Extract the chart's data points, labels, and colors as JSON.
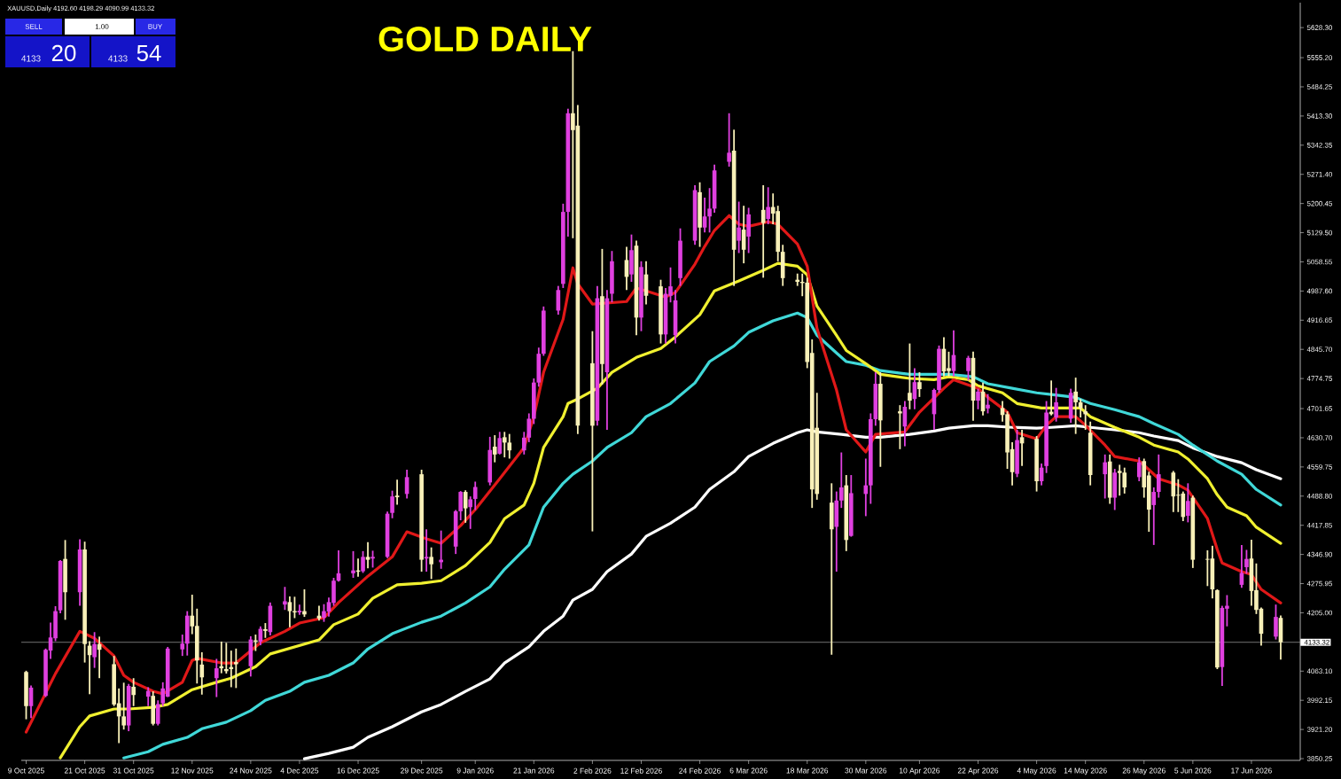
{
  "chart_data": {
    "type": "candlestick",
    "title": "GOLD DAILY",
    "subtitle": "XAUUSD,Daily 4192.60 4198.29 4090.99 4133.32",
    "annotations": [
      "SELL",
      "1.00",
      "BUY",
      "4133",
      "20",
      "4133",
      "54"
    ],
    "x": [
      "2025-10-09",
      "2025-10-10",
      "2025-10-13",
      "2025-10-14",
      "2025-10-15",
      "2025-10-16",
      "2025-10-17",
      "2025-10-20",
      "2025-10-21",
      "2025-10-22",
      "2025-10-23",
      "2025-10-24",
      "2025-10-27",
      "2025-10-28",
      "2025-10-29",
      "2025-10-30",
      "2025-10-31",
      "2025-11-03",
      "2025-11-04",
      "2025-11-05",
      "2025-11-06",
      "2025-11-07",
      "2025-11-10",
      "2025-11-11",
      "2025-11-12",
      "2025-11-13",
      "2025-11-14",
      "2025-11-17",
      "2025-11-18",
      "2025-11-19",
      "2025-11-20",
      "2025-11-21",
      "2025-11-24",
      "2025-11-25",
      "2025-11-26",
      "2025-11-27",
      "2025-11-28",
      "2025-12-01",
      "2025-12-02",
      "2025-12-03",
      "2025-12-04",
      "2025-12-05",
      "2025-12-08",
      "2025-12-09",
      "2025-12-10",
      "2025-12-11",
      "2025-12-12",
      "2025-12-15",
      "2025-12-16",
      "2025-12-17",
      "2025-12-18",
      "2025-12-19",
      "2025-12-22",
      "2025-12-23",
      "2025-12-24",
      "2025-12-26",
      "2025-12-29",
      "2025-12-30",
      "2025-12-31",
      "2026-01-02",
      "2026-01-05",
      "2026-01-06",
      "2026-01-07",
      "2026-01-08",
      "2026-01-09",
      "2026-01-12",
      "2026-01-13",
      "2026-01-14",
      "2026-01-15",
      "2026-01-16",
      "2026-01-19",
      "2026-01-20",
      "2026-01-21",
      "2026-01-22",
      "2026-01-23",
      "2026-01-26",
      "2026-01-27",
      "2026-01-28",
      "2026-01-29",
      "2026-01-30",
      "2026-02-02",
      "2026-02-03",
      "2026-02-04",
      "2026-02-05",
      "2026-02-06",
      "2026-02-09",
      "2026-02-10",
      "2026-02-11",
      "2026-02-12",
      "2026-02-13",
      "2026-02-16",
      "2026-02-17",
      "2026-02-18",
      "2026-02-19",
      "2026-02-20",
      "2026-02-23",
      "2026-02-24",
      "2026-02-25",
      "2026-02-26",
      "2026-02-27",
      "2026-03-02",
      "2026-03-03",
      "2026-03-04",
      "2026-03-05",
      "2026-03-06",
      "2026-03-09",
      "2026-03-10",
      "2026-03-11",
      "2026-03-12",
      "2026-03-13",
      "2026-03-16",
      "2026-03-17",
      "2026-03-18",
      "2026-03-19",
      "2026-03-20",
      "2026-03-23",
      "2026-03-24",
      "2026-03-25",
      "2026-03-26",
      "2026-03-27",
      "2026-03-30",
      "2026-03-31",
      "2026-04-01",
      "2026-04-02",
      "2026-04-06",
      "2026-04-07",
      "2026-04-08",
      "2026-04-09",
      "2026-04-10",
      "2026-04-13",
      "2026-04-14",
      "2026-04-15",
      "2026-04-16",
      "2026-04-17",
      "2026-04-20",
      "2026-04-21",
      "2026-04-22",
      "2026-04-23",
      "2026-04-24",
      "2026-04-27",
      "2026-04-28",
      "2026-04-29",
      "2026-04-30",
      "2026-05-01",
      "2026-05-04",
      "2026-05-05",
      "2026-05-06",
      "2026-05-07",
      "2026-05-08",
      "2026-05-11",
      "2026-05-12",
      "2026-05-13",
      "2026-05-14",
      "2026-05-15",
      "2026-05-18",
      "2026-05-19",
      "2026-05-20",
      "2026-05-21",
      "2026-05-22",
      "2026-05-25",
      "2026-05-26",
      "2026-05-27",
      "2026-05-28",
      "2026-05-29",
      "2026-06-01",
      "2026-06-02",
      "2026-06-03",
      "2026-06-04",
      "2026-06-05",
      "2026-06-08",
      "2026-06-09",
      "2026-06-10",
      "2026-06-11",
      "2026-06-12",
      "2026-06-15",
      "2026-06-16",
      "2026-06-17",
      "2026-06-18",
      "2026-06-19",
      "2026-06-22",
      "2026-06-23"
    ],
    "ohlc": [
      [
        4061,
        4064,
        3946,
        3978
      ],
      [
        3978,
        4028,
        3949,
        4023
      ],
      [
        4003,
        4118,
        4000,
        4115
      ],
      [
        4113,
        4181,
        4093,
        4145
      ],
      [
        4143,
        4221,
        4136,
        4209
      ],
      [
        4211,
        4333,
        4204,
        4331
      ],
      [
        4336,
        4382,
        4188,
        4255
      ],
      [
        4255,
        4384,
        4222,
        4359
      ],
      [
        4359,
        4378,
        4084,
        4129
      ],
      [
        4125,
        4136,
        4007,
        4102
      ],
      [
        4097,
        4158,
        4071,
        4129
      ],
      [
        4129,
        4147,
        4046,
        4115
      ],
      [
        4080,
        4100,
        3978,
        3982
      ],
      [
        3985,
        4021,
        3888,
        3953
      ],
      [
        3953,
        4035,
        3921,
        3931
      ],
      [
        3931,
        4032,
        3917,
        4027
      ],
      [
        4025,
        4046,
        3978,
        4005
      ],
      [
        4001,
        4024,
        3978,
        4015
      ],
      [
        4003,
        4014,
        3931,
        3935
      ],
      [
        3935,
        3992,
        3931,
        3983
      ],
      [
        3985,
        4036,
        3978,
        4021
      ],
      [
        4001,
        4122,
        4000,
        4118
      ],
      [
        4116,
        4152,
        4100,
        4130
      ],
      [
        4130,
        4209,
        4101,
        4198
      ],
      [
        4198,
        4249,
        4153,
        4172
      ],
      [
        4173,
        4215,
        4033,
        4089
      ],
      [
        4079,
        4109,
        4006,
        4048
      ],
      [
        4046,
        4093,
        4000,
        4070
      ],
      [
        4075,
        4135,
        4058,
        4070
      ],
      [
        4068,
        4132,
        4057,
        4063
      ],
      [
        4073,
        4113,
        4024,
        4068
      ],
      [
        4085,
        4118,
        4022,
        4080
      ],
      [
        4075,
        4148,
        4050,
        4140
      ],
      [
        4138,
        4152,
        4112,
        4135
      ],
      [
        4135,
        4172,
        4126,
        4166
      ],
      [
        4165,
        4180,
        4144,
        4161
      ],
      [
        4158,
        4230,
        4150,
        4222
      ],
      [
        4225,
        4268,
        4212,
        4233
      ],
      [
        4231,
        4245,
        4170,
        4209
      ],
      [
        4209,
        4244,
        4192,
        4206
      ],
      [
        4206,
        4225,
        4200,
        4210
      ],
      [
        4209,
        4262,
        4195,
        4201
      ],
      [
        4198,
        4222,
        4186,
        4191
      ],
      [
        4193,
        4226,
        4183,
        4209
      ],
      [
        4208,
        4242,
        4196,
        4231
      ],
      [
        4229,
        4290,
        4222,
        4283
      ],
      [
        4283,
        4357,
        4281,
        4301
      ],
      [
        4301,
        4355,
        4290,
        4308
      ],
      [
        4308,
        4337,
        4293,
        4305
      ],
      [
        4306,
        4355,
        4302,
        4341
      ],
      [
        4341,
        4377,
        4313,
        4334
      ],
      [
        4337,
        4356,
        4315,
        4341
      ],
      [
        4341,
        4451,
        4338,
        4446
      ],
      [
        4448,
        4502,
        4435,
        4488
      ],
      [
        4490,
        4529,
        4468,
        4486
      ],
      [
        4494,
        4553,
        4483,
        4535
      ],
      [
        4542,
        4553,
        4305,
        4334
      ],
      [
        4337,
        4408,
        4305,
        4341
      ],
      [
        4341,
        4364,
        4287,
        4323
      ],
      [
        4328,
        4405,
        4312,
        4334
      ],
      [
        4366,
        4455,
        4348,
        4452
      ],
      [
        4452,
        4501,
        4430,
        4499
      ],
      [
        4499,
        4503,
        4424,
        4459
      ],
      [
        4462,
        4488,
        4409,
        4481
      ],
      [
        4482,
        4524,
        4455,
        4511
      ],
      [
        4522,
        4633,
        4515,
        4601
      ],
      [
        4609,
        4637,
        4571,
        4590
      ],
      [
        4592,
        4645,
        4590,
        4630
      ],
      [
        4632,
        4645,
        4583,
        4619
      ],
      [
        4619,
        4640,
        4580,
        4600
      ],
      [
        4600,
        4645,
        4590,
        4631
      ],
      [
        4631,
        4690,
        4620,
        4677
      ],
      [
        4677,
        4775,
        4664,
        4765
      ],
      [
        4765,
        4850,
        4755,
        4835
      ],
      [
        4835,
        4950,
        4830,
        4940
      ],
      [
        4940,
        5000,
        4930,
        4990
      ],
      [
        5005,
        5200,
        4995,
        5180
      ],
      [
        5180,
        5431,
        5120,
        5420
      ],
      [
        5420,
        5571,
        5116,
        5379
      ],
      [
        5390,
        5440,
        4640,
        4660
      ],
      [
        4812,
        4890,
        4403,
        4660
      ],
      [
        4672,
        5000,
        4660,
        4970
      ],
      [
        4975,
        5090,
        4760,
        4810
      ],
      [
        4790,
        4990,
        4650,
        4970
      ],
      [
        4981,
        5085,
        4960,
        5060
      ],
      [
        5063,
        5095,
        4990,
        5022
      ],
      [
        5028,
        5125,
        5010,
        5087
      ],
      [
        5098,
        5110,
        4880,
        4923
      ],
      [
        4923,
        5060,
        4890,
        5046
      ],
      [
        5028,
        5060,
        4955,
        4976
      ],
      [
        4999,
        5015,
        4860,
        4882
      ],
      [
        4882,
        4995,
        4860,
        4981
      ],
      [
        4976,
        5045,
        4960,
        4999
      ],
      [
        4880,
        4990,
        4860,
        4965
      ],
      [
        5019,
        5140,
        5000,
        5110
      ],
      [
        5110,
        5245,
        5100,
        5233
      ],
      [
        5228,
        5252,
        5095,
        5142
      ],
      [
        5142,
        5215,
        5130,
        5169
      ],
      [
        5169,
        5238,
        5130,
        5188
      ],
      [
        5188,
        5295,
        5178,
        5281
      ],
      [
        5302,
        5420,
        5290,
        5324
      ],
      [
        5329,
        5380,
        5000,
        5088
      ],
      [
        5110,
        5205,
        5080,
        5142
      ],
      [
        5137,
        5195,
        5055,
        5088
      ],
      [
        5120,
        5190,
        5080,
        5174
      ],
      [
        5185,
        5245,
        5020,
        5153
      ],
      [
        5163,
        5240,
        5150,
        5192
      ],
      [
        5192,
        5225,
        5150,
        5176
      ],
      [
        5182,
        5195,
        5060,
        5083
      ],
      [
        5083,
        5100,
        5000,
        5019
      ],
      [
        5015,
        5030,
        5000,
        5010
      ],
      [
        5010,
        5030,
        4975,
        5007
      ],
      [
        5008,
        5020,
        4800,
        4815
      ],
      [
        4837,
        4870,
        4460,
        4505
      ],
      [
        4655,
        4740,
        4480,
        4494
      ],
      [
        4473,
        4520,
        4103,
        4408
      ],
      [
        4414,
        4500,
        4305,
        4478
      ],
      [
        4478,
        4595,
        4460,
        4510
      ],
      [
        4515,
        4540,
        4355,
        4382
      ],
      [
        4392,
        4540,
        4390,
        4496
      ],
      [
        4494,
        4580,
        4440,
        4515
      ],
      [
        4515,
        4690,
        4470,
        4676
      ],
      [
        4676,
        4790,
        4660,
        4762
      ],
      [
        4762,
        4790,
        4560,
        4673
      ],
      [
        4695,
        4710,
        4603,
        4690
      ],
      [
        4658,
        4720,
        4610,
        4706
      ],
      [
        4740,
        4860,
        4700,
        4721
      ],
      [
        4725,
        4800,
        4700,
        4766
      ],
      [
        4766,
        4790,
        4730,
        4749
      ],
      [
        4688,
        4750,
        4650,
        4747
      ],
      [
        4747,
        4855,
        4740,
        4847
      ],
      [
        4847,
        4875,
        4780,
        4792
      ],
      [
        4800,
        4840,
        4780,
        4793
      ],
      [
        4793,
        4892,
        4780,
        4832
      ],
      [
        4793,
        4830,
        4770,
        4825
      ],
      [
        4825,
        4840,
        4672,
        4721
      ],
      [
        4721,
        4750,
        4700,
        4743
      ],
      [
        4743,
        4765,
        4685,
        4695
      ],
      [
        4702,
        4737,
        4690,
        4711
      ],
      [
        4703,
        4720,
        4670,
        4686
      ],
      [
        4688,
        4695,
        4555,
        4595
      ],
      [
        4603,
        4620,
        4515,
        4547
      ],
      [
        4543,
        4650,
        4535,
        4625
      ],
      [
        4632,
        4650,
        4562,
        4617
      ],
      [
        4628,
        4635,
        4500,
        4525
      ],
      [
        4525,
        4568,
        4515,
        4558
      ],
      [
        4562,
        4720,
        4545,
        4692
      ],
      [
        4694,
        4770,
        4685,
        4688
      ],
      [
        4680,
        4752,
        4670,
        4717
      ],
      [
        4677,
        4750,
        4667,
        4740
      ],
      [
        4743,
        4777,
        4640,
        4717
      ],
      [
        4717,
        4725,
        4680,
        4703
      ],
      [
        4695,
        4710,
        4650,
        4688
      ],
      [
        4643,
        4670,
        4515,
        4540
      ],
      [
        4542,
        4590,
        4483,
        4571
      ],
      [
        4573,
        4590,
        4470,
        4485
      ],
      [
        4485,
        4555,
        4455,
        4546
      ],
      [
        4550,
        4565,
        4490,
        4545
      ],
      [
        4546,
        4558,
        4495,
        4510
      ],
      [
        4535,
        4583,
        4525,
        4571
      ],
      [
        4574,
        4580,
        4485,
        4510
      ],
      [
        4539,
        4548,
        4402,
        4456
      ],
      [
        4467,
        4510,
        4370,
        4499
      ],
      [
        4499,
        4590,
        4485,
        4542
      ],
      [
        4546,
        4550,
        4450,
        4488
      ],
      [
        4492,
        4530,
        4450,
        4490
      ],
      [
        4495,
        4500,
        4428,
        4438
      ],
      [
        4441,
        4520,
        4425,
        4477
      ],
      [
        4485,
        4490,
        4314,
        4334
      ],
      [
        4336,
        4357,
        4270,
        4334
      ],
      [
        4337,
        4368,
        4240,
        4262
      ],
      [
        4260,
        4262,
        4068,
        4072
      ],
      [
        4073,
        4222,
        4027,
        4217
      ],
      [
        4215,
        4248,
        4172,
        4222
      ],
      [
        4273,
        4370,
        4266,
        4302
      ],
      [
        4316,
        4358,
        4300,
        4336
      ],
      [
        4337,
        4383,
        4222,
        4258
      ],
      [
        4260,
        4325,
        4202,
        4212
      ],
      [
        4215,
        4218,
        4125,
        4154
      ],
      [
        4147,
        4225,
        4140,
        4195
      ],
      [
        4192.6,
        4198.29,
        4090.99,
        4133.32
      ]
    ],
    "colors": [
      "#f8f0b8",
      "#e040e0",
      "#e040e0",
      "#e040e0",
      "#e040e0",
      "#e040e0",
      "#f8f0b8",
      "#e040e0",
      "#f8f0b8",
      "#f8f0b8",
      "#e040e0",
      "#f8f0b8",
      "#f8f0b8",
      "#f8f0b8",
      "#f8f0b8",
      "#e040e0",
      "#f8f0b8",
      "#e040e0",
      "#f8f0b8",
      "#e040e0",
      "#e040e0",
      "#e040e0",
      "#e040e0",
      "#e040e0",
      "#f8f0b8",
      "#f8f0b8",
      "#f8f0b8",
      "#e040e0",
      "#f8f0b8",
      "#f8f0b8",
      "#f8f0b8",
      "#f8f0b8",
      "#e040e0",
      "#f8f0b8",
      "#e040e0",
      "#f8f0b8",
      "#e040e0",
      "#e040e0",
      "#f8f0b8",
      "#f8f0b8",
      "#e040e0",
      "#f8f0b8",
      "#f8f0b8",
      "#e040e0",
      "#e040e0",
      "#e040e0",
      "#e040e0",
      "#e040e0",
      "#f8f0b8",
      "#e040e0",
      "#f8f0b8",
      "#e040e0",
      "#e040e0",
      "#e040e0",
      "#f8f0b8",
      "#e040e0",
      "#f8f0b8",
      "#e040e0",
      "#f8f0b8",
      "#e040e0",
      "#e040e0",
      "#e040e0",
      "#f8f0b8",
      "#e040e0",
      "#e040e0",
      "#e040e0",
      "#f8f0b8",
      "#e040e0",
      "#f8f0b8",
      "#f8f0b8",
      "#e040e0",
      "#e040e0",
      "#e040e0",
      "#e040e0",
      "#e040e0",
      "#e040e0",
      "#e040e0",
      "#e040e0",
      "#f8f0b8",
      "#f8f0b8",
      "#f8f0b8",
      "#e040e0",
      "#f8f0b8",
      "#e040e0",
      "#e040e0",
      "#f8f0b8",
      "#e040e0",
      "#f8f0b8",
      "#e040e0",
      "#f8f0b8",
      "#f8f0b8",
      "#e040e0",
      "#e040e0",
      "#e040e0",
      "#e040e0",
      "#e040e0",
      "#f8f0b8",
      "#e040e0",
      "#e040e0",
      "#e040e0",
      "#e040e0",
      "#f8f0b8",
      "#e040e0",
      "#f8f0b8",
      "#e040e0",
      "#f8f0b8",
      "#e040e0",
      "#f8f0b8",
      "#f8f0b8",
      "#f8f0b8",
      "#f8f0b8",
      "#f8f0b8",
      "#f8f0b8",
      "#f8f0b8",
      "#f8f0b8",
      "#f8f0b8",
      "#e040e0",
      "#e040e0",
      "#f8f0b8",
      "#e040e0",
      "#e040e0",
      "#e040e0",
      "#e040e0",
      "#f8f0b8",
      "#f8f0b8",
      "#e040e0",
      "#f8f0b8",
      "#e040e0",
      "#f8f0b8",
      "#e040e0",
      "#e040e0",
      "#f8f0b8",
      "#f8f0b8",
      "#e040e0",
      "#e040e0",
      "#f8f0b8",
      "#e040e0",
      "#f8f0b8",
      "#e040e0",
      "#f8f0b8",
      "#f8f0b8",
      "#f8f0b8",
      "#e040e0",
      "#f8f0b8",
      "#f8f0b8",
      "#e040e0",
      "#e040e0",
      "#f8f0b8",
      "#e040e0",
      "#e040e0",
      "#f8f0b8",
      "#f8f0b8",
      "#f8f0b8",
      "#f8f0b8",
      "#e040e0",
      "#f8f0b8",
      "#e040e0",
      "#f8f0b8",
      "#f8f0b8",
      "#e040e0",
      "#f8f0b8",
      "#f8f0b8",
      "#e040e0",
      "#e040e0",
      "#f8f0b8",
      "#f8f0b8",
      "#f8f0b8",
      "#e040e0",
      "#f8f0b8",
      "#f8f0b8",
      "#f8f0b8",
      "#f8f0b8",
      "#e040e0",
      "#e040e0",
      "#e040e0",
      "#e040e0",
      "#f8f0b8",
      "#f8f0b8",
      "#f8f0b8",
      "#e040e0",
      "#f8f0b8"
    ],
    "series": [
      {
        "type": "line",
        "color": "#ffffff",
        "x": [
          "2025-12-05",
          "2025-12-10",
          "2025-12-15",
          "2025-12-18",
          "2025-12-23",
          "2025-12-29",
          "2026-01-02",
          "2026-01-07",
          "2026-01-12",
          "2026-01-15",
          "2026-01-20",
          "2026-01-23",
          "2026-01-27",
          "2026-01-29",
          "2026-02-02",
          "2026-02-05",
          "2026-02-10",
          "2026-02-13",
          "2026-02-18",
          "2026-02-23",
          "2026-02-26",
          "2026-03-03",
          "2026-03-06",
          "2026-03-11",
          "2026-03-16",
          "2026-03-18",
          "2026-03-20",
          "2026-03-25",
          "2026-03-30",
          "2026-04-02",
          "2026-04-08",
          "2026-04-13",
          "2026-04-16",
          "2026-04-21",
          "2026-04-24",
          "2026-04-29",
          "2026-05-04",
          "2026-05-07",
          "2026-05-12",
          "2026-05-15",
          "2026-05-20",
          "2026-05-25",
          "2026-05-28",
          "2026-06-02",
          "2026-06-05",
          "2026-06-10",
          "2026-06-15",
          "2026-06-18",
          "2026-06-23"
        ],
        "values": [
          3850,
          3863,
          3878,
          3902,
          3928,
          3964,
          3982,
          4014,
          4044,
          4083,
          4122,
          4160,
          4197,
          4236,
          4262,
          4305,
          4348,
          4391,
          4423,
          4462,
          4505,
          4548,
          4585,
          4617,
          4643,
          4650,
          4645,
          4639,
          4632,
          4632,
          4639,
          4647,
          4654,
          4660,
          4660,
          4656,
          4654,
          4656,
          4660,
          4656,
          4650,
          4643,
          4635,
          4624,
          4606,
          4585,
          4570,
          4553,
          4531
        ]
      },
      {
        "type": "line",
        "color": "#40d8d8",
        "x": [
          "2025-10-29",
          "2025-11-03",
          "2025-11-06",
          "2025-11-11",
          "2025-11-14",
          "2025-11-19",
          "2025-11-24",
          "2025-11-27",
          "2025-12-02",
          "2025-12-05",
          "2025-12-10",
          "2025-12-15",
          "2025-12-18",
          "2025-12-23",
          "2025-12-29",
          "2026-01-02",
          "2026-01-07",
          "2026-01-12",
          "2026-01-15",
          "2026-01-20",
          "2026-01-23",
          "2026-01-27",
          "2026-01-29",
          "2026-02-02",
          "2026-02-05",
          "2026-02-10",
          "2026-02-13",
          "2026-02-18",
          "2026-02-23",
          "2026-02-26",
          "2026-03-03",
          "2026-03-06",
          "2026-03-11",
          "2026-03-16",
          "2026-03-18",
          "2026-03-20",
          "2026-03-24",
          "2026-03-26",
          "2026-03-30",
          "2026-04-02",
          "2026-04-08",
          "2026-04-13",
          "2026-04-16",
          "2026-04-21",
          "2026-04-24",
          "2026-04-29",
          "2026-05-04",
          "2026-05-07",
          "2026-05-12",
          "2026-05-15",
          "2026-05-20",
          "2026-05-25",
          "2026-05-28",
          "2026-06-02",
          "2026-06-05",
          "2026-06-10",
          "2026-06-15",
          "2026-06-18",
          "2026-06-23"
        ],
        "values": [
          3852,
          3867,
          3885,
          3902,
          3923,
          3939,
          3967,
          3992,
          4014,
          4036,
          4053,
          4083,
          4117,
          4154,
          4182,
          4197,
          4229,
          4268,
          4311,
          4370,
          4462,
          4520,
          4542,
          4574,
          4607,
          4643,
          4682,
          4714,
          4764,
          4816,
          4854,
          4887,
          4915,
          4934,
          4923,
          4880,
          4837,
          4816,
          4807,
          4794,
          4785,
          4785,
          4785,
          4779,
          4762,
          4751,
          4740,
          4736,
          4729,
          4714,
          4699,
          4682,
          4665,
          4639,
          4613,
          4574,
          4542,
          4505,
          4467
        ]
      },
      {
        "type": "line",
        "color": "#f0f030",
        "x": [
          "2025-10-16",
          "2025-10-20",
          "2025-10-22",
          "2025-10-27",
          "2025-10-30",
          "2025-11-04",
          "2025-11-07",
          "2025-11-12",
          "2025-11-17",
          "2025-11-20",
          "2025-11-25",
          "2025-11-28",
          "2025-12-03",
          "2025-12-08",
          "2025-12-11",
          "2025-12-16",
          "2025-12-19",
          "2025-12-24",
          "2025-12-29",
          "2026-01-02",
          "2026-01-07",
          "2026-01-12",
          "2026-01-15",
          "2026-01-19",
          "2026-01-21",
          "2026-01-23",
          "2026-01-27",
          "2026-01-28",
          "2026-01-30",
          "2026-02-03",
          "2026-02-06",
          "2026-02-11",
          "2026-02-16",
          "2026-02-19",
          "2026-02-24",
          "2026-02-27",
          "2026-03-04",
          "2026-03-09",
          "2026-03-12",
          "2026-03-16",
          "2026-03-18",
          "2026-03-20",
          "2026-03-24",
          "2026-03-26",
          "2026-03-30",
          "2026-04-02",
          "2026-04-08",
          "2026-04-13",
          "2026-04-16",
          "2026-04-20",
          "2026-04-22",
          "2026-04-27",
          "2026-04-30",
          "2026-05-05",
          "2026-05-08",
          "2026-05-13",
          "2026-05-15",
          "2026-05-20",
          "2026-05-25",
          "2026-05-28",
          "2026-06-02",
          "2026-06-04",
          "2026-06-08",
          "2026-06-10",
          "2026-06-12",
          "2026-06-16",
          "2026-06-18",
          "2026-06-23"
        ],
        "values": [
          3852,
          3928,
          3954,
          3971,
          3971,
          3975,
          3982,
          4018,
          4036,
          4046,
          4074,
          4105,
          4122,
          4139,
          4176,
          4202,
          4240,
          4273,
          4277,
          4283,
          4320,
          4376,
          4434,
          4467,
          4520,
          4607,
          4682,
          4714,
          4725,
          4751,
          4790,
          4826,
          4848,
          4876,
          4930,
          4988,
          5012,
          5038,
          5055,
          5048,
          5027,
          4951,
          4880,
          4843,
          4811,
          4785,
          4775,
          4772,
          4779,
          4772,
          4757,
          4740,
          4714,
          4703,
          4703,
          4703,
          4682,
          4656,
          4632,
          4613,
          4596,
          4579,
          4531,
          4492,
          4462,
          4441,
          4413,
          4374
        ]
      },
      {
        "type": "line",
        "color": "#e01818",
        "x": [
          "2025-10-09",
          "2025-10-15",
          "2025-10-20",
          "2025-10-23",
          "2025-10-27",
          "2025-10-29",
          "2025-10-31",
          "2025-11-04",
          "2025-11-06",
          "2025-11-10",
          "2025-11-12",
          "2025-11-13",
          "2025-11-18",
          "2025-11-21",
          "2025-11-26",
          "2025-12-01",
          "2025-12-04",
          "2025-12-09",
          "2025-12-12",
          "2025-12-18",
          "2025-12-23",
          "2025-12-26",
          "2025-12-30",
          "2026-01-02",
          "2026-01-06",
          "2026-01-09",
          "2026-01-14",
          "2026-01-19",
          "2026-01-21",
          "2026-01-23",
          "2026-01-27",
          "2026-01-29",
          "2026-01-30",
          "2026-02-02",
          "2026-02-09",
          "2026-02-11",
          "2026-02-13",
          "2026-02-17",
          "2026-02-19",
          "2026-02-23",
          "2026-02-25",
          "2026-02-27",
          "2026-03-02",
          "2026-03-04",
          "2026-03-06",
          "2026-03-10",
          "2026-03-12",
          "2026-03-16",
          "2026-03-18",
          "2026-03-20",
          "2026-03-24",
          "2026-03-26",
          "2026-03-30",
          "2026-04-01",
          "2026-04-07",
          "2026-04-10",
          "2026-04-15",
          "2026-04-17",
          "2026-04-22",
          "2026-04-24",
          "2026-04-28",
          "2026-04-30",
          "2026-05-04",
          "2026-05-06",
          "2026-05-08",
          "2026-05-12",
          "2026-05-14",
          "2026-05-18",
          "2026-05-20",
          "2026-05-25",
          "2026-05-27",
          "2026-05-29",
          "2026-06-02",
          "2026-06-04",
          "2026-06-08",
          "2026-06-10",
          "2026-06-11",
          "2026-06-15",
          "2026-06-17",
          "2026-06-19",
          "2026-06-23"
        ],
        "values": [
          3915,
          4057,
          4160,
          4143,
          4100,
          4053,
          4036,
          4014,
          4008,
          4036,
          4089,
          4094,
          4083,
          4083,
          4132,
          4160,
          4180,
          4193,
          4230,
          4294,
          4341,
          4402,
          4385,
          4374,
          4417,
          4456,
          4531,
          4607,
          4682,
          4790,
          4919,
          5044,
          5005,
          4956,
          4962,
          4995,
          4988,
          4973,
          4984,
          5053,
          5096,
          5135,
          5171,
          5150,
          5145,
          5156,
          5150,
          5102,
          5048,
          4897,
          4747,
          4650,
          4596,
          4639,
          4645,
          4693,
          4751,
          4772,
          4751,
          4729,
          4693,
          4643,
          4628,
          4661,
          4682,
          4682,
          4661,
          4613,
          4585,
          4574,
          4553,
          4531,
          4516,
          4503,
          4434,
          4359,
          4326,
          4305,
          4298,
          4262,
          4229
        ]
      }
    ],
    "xlim": [
      "2025-10-08",
      "2026-06-27"
    ],
    "xticks": [
      {
        "value": "2025-10-09",
        "label": "9 Oct 2025"
      },
      {
        "value": "2025-10-21",
        "label": "21 Oct 2025"
      },
      {
        "value": "2025-10-31",
        "label": "31 Oct 2025"
      },
      {
        "value": "2025-11-12",
        "label": "12 Nov 2025"
      },
      {
        "value": "2025-11-24",
        "label": "24 Nov 2025"
      },
      {
        "value": "2025-12-04",
        "label": "4 Dec 2025"
      },
      {
        "value": "2025-12-16",
        "label": "16 Dec 2025"
      },
      {
        "value": "2025-12-29",
        "label": "29 Dec 2025"
      },
      {
        "value": "2026-01-09",
        "label": "9 Jan 2026"
      },
      {
        "value": "2026-01-21",
        "label": "21 Jan 2026"
      },
      {
        "value": "2026-02-02",
        "label": "2 Feb 2026"
      },
      {
        "value": "2026-02-12",
        "label": "12 Feb 2026"
      },
      {
        "value": "2026-02-24",
        "label": "24 Feb 2026"
      },
      {
        "value": "2026-03-06",
        "label": "6 Mar 2026"
      },
      {
        "value": "2026-03-18",
        "label": "18 Mar 2026"
      },
      {
        "value": "2026-03-30",
        "label": "30 Mar 2026"
      },
      {
        "value": "2026-04-10",
        "label": "10 Apr 2026"
      },
      {
        "value": "2026-04-22",
        "label": "22 Apr 2026"
      },
      {
        "value": "2026-05-04",
        "label": "4 May 2026"
      },
      {
        "value": "2026-05-14",
        "label": "14 May 2026"
      },
      {
        "value": "2026-05-26",
        "label": "26 May 2026"
      },
      {
        "value": "2026-06-05",
        "label": "5 Jun 2026"
      },
      {
        "value": "2026-06-17",
        "label": "17 Jun 2026"
      }
    ],
    "ylim": [
      3846,
      5689
    ],
    "yticks": [
      {
        "value": 3850.25,
        "label": "3850.25"
      },
      {
        "value": 3921.2,
        "label": "3921.20"
      },
      {
        "value": 3992.15,
        "label": "3992.15"
      },
      {
        "value": 4063.1,
        "label": "4063.10"
      },
      {
        "value": 4205,
        "label": "4205.00"
      },
      {
        "value": 4275.95,
        "label": "4275.95"
      },
      {
        "value": 4346.9,
        "label": "4346.90"
      },
      {
        "value": 4417.85,
        "label": "4417.85"
      },
      {
        "value": 4488.8,
        "label": "4488.80"
      },
      {
        "value": 4559.75,
        "label": "4559.75"
      },
      {
        "value": 4630.7,
        "label": "4630.70"
      },
      {
        "value": 4701.65,
        "label": "4701.65"
      },
      {
        "value": 4774.75,
        "label": "4774.75"
      },
      {
        "value": 4845.7,
        "label": "4845.70"
      },
      {
        "value": 4916.65,
        "label": "4916.65"
      },
      {
        "value": 4987.6,
        "label": "4987.60"
      },
      {
        "value": 5058.55,
        "label": "5058.55"
      },
      {
        "value": 5129.5,
        "label": "5129.50"
      },
      {
        "value": 5200.45,
        "label": "5200.45"
      },
      {
        "value": 5271.4,
        "label": "5271.40"
      },
      {
        "value": 5342.35,
        "label": "5342.35"
      },
      {
        "value": 5413.3,
        "label": "5413.30"
      },
      {
        "value": 5484.25,
        "label": "5484.25"
      },
      {
        "value": 5555.2,
        "label": "5555.20"
      },
      {
        "value": 5628.3,
        "label": "5628.30"
      }
    ],
    "ref_lines": [
      {
        "axis": "y",
        "value": 4133.32,
        "label": "4133.32",
        "color": "#a0a0a0"
      }
    ]
  }
}
